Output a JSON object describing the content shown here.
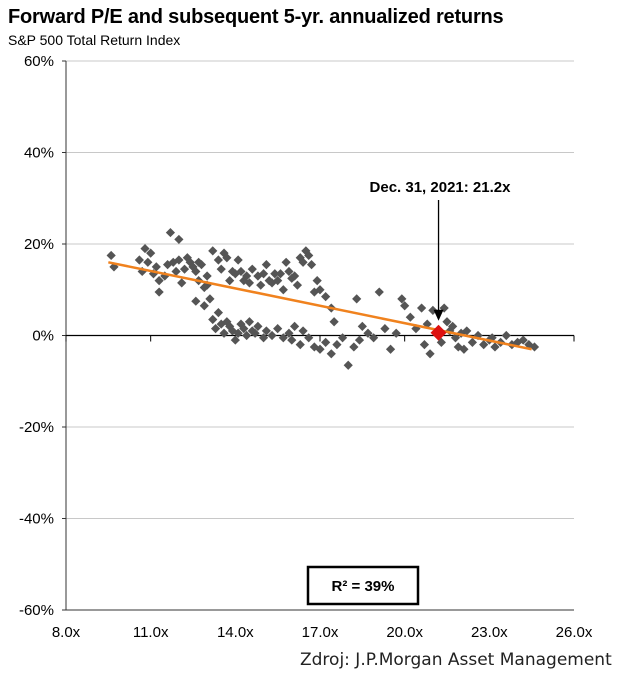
{
  "chart_data": {
    "type": "scatter",
    "title": "Forward P/E and subsequent 5-yr. annualized returns",
    "subtitle": "S&P 500 Total Return Index",
    "xlim": [
      8.0,
      26.0
    ],
    "ylim": [
      -60,
      60
    ],
    "x_ticks": [
      "8.0x",
      "11.0x",
      "14.0x",
      "17.0x",
      "20.0x",
      "23.0x",
      "26.0x"
    ],
    "x_tick_values": [
      8,
      11,
      14,
      17,
      20,
      23,
      26
    ],
    "y_ticks": [
      "60%",
      "40%",
      "20%",
      "0%",
      "-20%",
      "-40%",
      "-60%"
    ],
    "y_tick_values": [
      60,
      40,
      20,
      0,
      -20,
      -40,
      -60
    ],
    "grid": "horizontal",
    "colors": {
      "points": "#555555",
      "trendline": "#f0821e",
      "highlight": "#dd1111"
    },
    "trendline": {
      "x": [
        9.5,
        24.5
      ],
      "y": [
        16,
        -3
      ]
    },
    "highlight": {
      "x": 21.2,
      "y": 0.6,
      "label": "Dec. 31, 2021: 21.2x"
    },
    "r_squared_label": "R² = 39%",
    "points": [
      [
        9.6,
        17.5
      ],
      [
        9.7,
        15
      ],
      [
        10.6,
        16.5
      ],
      [
        10.7,
        14
      ],
      [
        10.8,
        19
      ],
      [
        10.9,
        16
      ],
      [
        11.0,
        18
      ],
      [
        11.1,
        13.5
      ],
      [
        11.2,
        15
      ],
      [
        11.3,
        12
      ],
      [
        11.3,
        9.5
      ],
      [
        11.5,
        13
      ],
      [
        11.6,
        15.5
      ],
      [
        11.7,
        22.5
      ],
      [
        11.8,
        16
      ],
      [
        11.9,
        14
      ],
      [
        12.0,
        21
      ],
      [
        12.0,
        16.5
      ],
      [
        12.1,
        11.5
      ],
      [
        12.2,
        14.5
      ],
      [
        12.3,
        17
      ],
      [
        12.4,
        16
      ],
      [
        12.5,
        15
      ],
      [
        12.6,
        14
      ],
      [
        12.7,
        12
      ],
      [
        12.7,
        16
      ],
      [
        12.8,
        15.5
      ],
      [
        12.9,
        10.5
      ],
      [
        13.0,
        13
      ],
      [
        13.0,
        11
      ],
      [
        12.6,
        7.5
      ],
      [
        12.9,
        6.5
      ],
      [
        13.1,
        8
      ],
      [
        13.2,
        3.5
      ],
      [
        13.3,
        1.5
      ],
      [
        13.4,
        5
      ],
      [
        13.5,
        2.5
      ],
      [
        13.6,
        0.5
      ],
      [
        13.7,
        3
      ],
      [
        13.8,
        2
      ],
      [
        13.9,
        1
      ],
      [
        14.0,
        -1
      ],
      [
        14.1,
        0.5
      ],
      [
        14.2,
        2.5
      ],
      [
        14.3,
        1.5
      ],
      [
        14.4,
        0
      ],
      [
        14.5,
        3
      ],
      [
        14.6,
        1
      ],
      [
        14.7,
        0.5
      ],
      [
        14.8,
        2
      ],
      [
        13.2,
        18.5
      ],
      [
        13.4,
        16.5
      ],
      [
        13.5,
        14.5
      ],
      [
        13.6,
        18
      ],
      [
        13.7,
        17
      ],
      [
        13.8,
        12
      ],
      [
        13.9,
        14
      ],
      [
        14.0,
        13.5
      ],
      [
        14.1,
        16.5
      ],
      [
        14.2,
        14
      ],
      [
        14.3,
        12
      ],
      [
        14.4,
        13
      ],
      [
        14.5,
        11.5
      ],
      [
        14.6,
        14.5
      ],
      [
        14.8,
        13
      ],
      [
        14.9,
        11
      ],
      [
        15.0,
        13.5
      ],
      [
        15.1,
        15.5
      ],
      [
        15.2,
        12
      ],
      [
        15.3,
        11.5
      ],
      [
        15.4,
        13.5
      ],
      [
        15.5,
        12
      ],
      [
        15.6,
        13.5
      ],
      [
        15.7,
        10
      ],
      [
        15.8,
        16
      ],
      [
        15.9,
        14
      ],
      [
        16.0,
        12.5
      ],
      [
        16.1,
        13
      ],
      [
        16.2,
        11
      ],
      [
        16.3,
        17
      ],
      [
        16.4,
        16
      ],
      [
        16.5,
        18.5
      ],
      [
        16.6,
        17.5
      ],
      [
        16.7,
        15.5
      ],
      [
        16.8,
        9.5
      ],
      [
        16.9,
        12
      ],
      [
        17.0,
        10
      ],
      [
        17.2,
        8.5
      ],
      [
        17.4,
        6
      ],
      [
        17.5,
        3
      ],
      [
        15.0,
        -0.5
      ],
      [
        15.1,
        1
      ],
      [
        15.3,
        0
      ],
      [
        15.5,
        1.5
      ],
      [
        15.7,
        -0.5
      ],
      [
        15.9,
        0.5
      ],
      [
        16.0,
        -1
      ],
      [
        16.1,
        2
      ],
      [
        16.3,
        -2
      ],
      [
        16.4,
        1
      ],
      [
        16.6,
        -0.5
      ],
      [
        16.8,
        -2.5
      ],
      [
        17.0,
        -3
      ],
      [
        17.2,
        -1.5
      ],
      [
        17.4,
        -4
      ],
      [
        17.6,
        -2
      ],
      [
        17.8,
        -0.5
      ],
      [
        18.0,
        -6.5
      ],
      [
        18.2,
        -2.5
      ],
      [
        18.4,
        -1
      ],
      [
        18.5,
        2
      ],
      [
        18.3,
        8
      ],
      [
        18.7,
        0.5
      ],
      [
        18.9,
        -0.5
      ],
      [
        19.1,
        9.5
      ],
      [
        19.3,
        1.5
      ],
      [
        19.5,
        -3
      ],
      [
        19.7,
        0.5
      ],
      [
        19.9,
        8
      ],
      [
        20.0,
        6.5
      ],
      [
        20.2,
        4
      ],
      [
        20.4,
        1.5
      ],
      [
        20.6,
        6
      ],
      [
        20.8,
        2.5
      ],
      [
        20.9,
        -4
      ],
      [
        21.0,
        5.5
      ],
      [
        21.4,
        6
      ],
      [
        21.5,
        3
      ],
      [
        21.6,
        1
      ],
      [
        21.7,
        2
      ],
      [
        21.8,
        -0.5
      ],
      [
        21.9,
        -2.5
      ],
      [
        22.0,
        0.5
      ],
      [
        22.2,
        1
      ],
      [
        22.4,
        -1.5
      ],
      [
        22.6,
        0
      ],
      [
        22.8,
        -2
      ],
      [
        23.0,
        -1
      ],
      [
        23.2,
        -2.5
      ],
      [
        23.4,
        -1.5
      ],
      [
        23.6,
        0
      ],
      [
        23.8,
        -2
      ],
      [
        24.0,
        -1.5
      ],
      [
        24.2,
        -1
      ],
      [
        24.4,
        -2
      ],
      [
        24.6,
        -2.5
      ],
      [
        21.3,
        -1.5
      ],
      [
        20.7,
        -2
      ],
      [
        22.1,
        -3
      ],
      [
        23.1,
        -0.5
      ]
    ]
  },
  "source_note": "Zdroj: J.P.Morgan Asset Management"
}
